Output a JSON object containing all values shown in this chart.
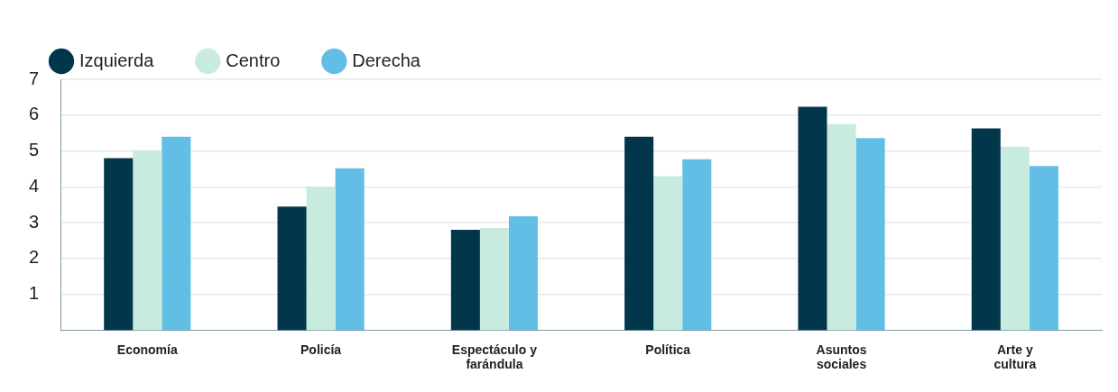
{
  "chart_data": {
    "type": "bar",
    "categories": [
      "Economía",
      "Policía",
      "Espectáculo y farándula",
      "Política",
      "Asuntos sociales",
      "Arte y cultura"
    ],
    "series": [
      {
        "name": "Izquierda",
        "color": "#02364b",
        "values": [
          4.8,
          3.45,
          2.8,
          5.4,
          6.23,
          5.63
        ]
      },
      {
        "name": "Centro",
        "color": "#c8ebdf",
        "values": [
          5.02,
          4.0,
          2.85,
          4.3,
          5.75,
          5.12
        ]
      },
      {
        "name": "Derecha",
        "color": "#63bee6",
        "values": [
          5.4,
          4.52,
          3.18,
          4.77,
          5.36,
          4.58
        ]
      }
    ],
    "ylim": [
      0,
      7
    ],
    "yticks": [
      1,
      2,
      3,
      4,
      5,
      6,
      7
    ],
    "grid": "y",
    "legend": "top left"
  }
}
